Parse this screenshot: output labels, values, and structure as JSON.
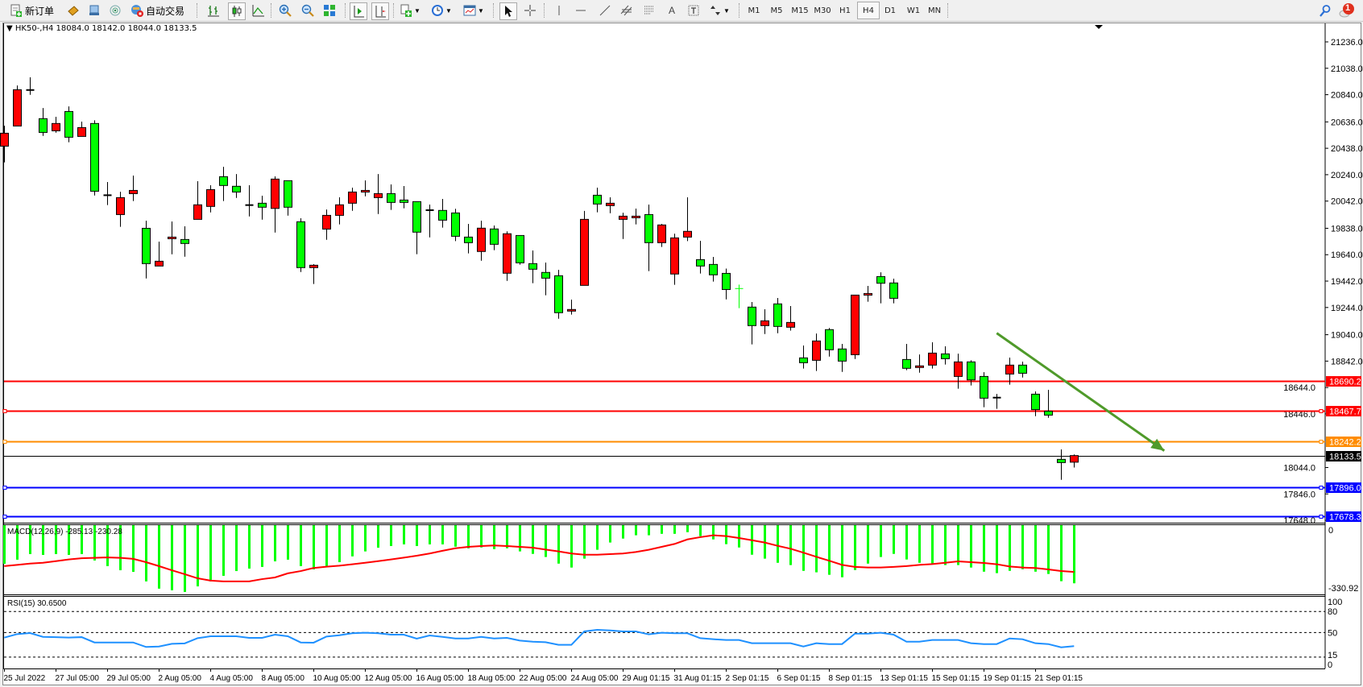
{
  "toolbar": {
    "new_order_label": "新订单",
    "auto_trading_label": "自动交易",
    "icons": [
      "new-order-icon",
      "market-watch-icon",
      "navigator-icon",
      "signals-icon",
      "auto-trading-icon",
      "bar-chart-icon",
      "candlestick-icon",
      "line-chart-icon",
      "zoom-in-icon",
      "zoom-out-icon",
      "tile-windows-icon",
      "auto-scroll-icon",
      "chart-shift-icon",
      "indicators-icon",
      "periods-icon",
      "templates-icon",
      "cursor-icon",
      "crosshair-icon",
      "vertical-line-icon",
      "horizontal-line-icon",
      "trendline-icon",
      "equidistant-channel-icon",
      "fibonacci-icon",
      "text-icon",
      "text-label-icon",
      "arrows-icon",
      "search-icon",
      "notification-icon"
    ],
    "timeframes": [
      "M1",
      "M5",
      "M15",
      "M30",
      "H1",
      "H4",
      "D1",
      "W1",
      "MN"
    ],
    "active_timeframe": "H4",
    "text_tool_label": "A",
    "notification_count": "1"
  },
  "chart": {
    "symbol_info": "HK50-,H4  18084.0 18142.0 18044.0 18133.5",
    "colors": {
      "bull_body": "#ff0000",
      "bear_body": "#00ff00",
      "outline": "#000000",
      "macd_hist": "#00ff00",
      "macd_signal": "#ff0000",
      "rsi": "#1e90ff",
      "arrow": "#4f9a2a"
    },
    "price_ticks": [
      21236.0,
      21038.0,
      20840.0,
      20636.0,
      20438.0,
      20240.0,
      20042.0,
      19838.0,
      19640.0,
      19442.0,
      19244.0,
      19040.0,
      18842.0,
      18644.0,
      18446.0,
      18044.0,
      17846.0,
      17648.0
    ],
    "hlines": [
      {
        "price": "18690.2",
        "color": "#ff0000",
        "markers": false
      },
      {
        "price": "18467.7",
        "color": "#ff0000",
        "markers": true
      },
      {
        "price": "18242.2",
        "color": "#ff8c00",
        "markers": true
      },
      {
        "price": "18133.5",
        "color": "#000000",
        "markers": false
      },
      {
        "price": "17896.0",
        "color": "#0000ff",
        "markers": true
      },
      {
        "price": "17678.3",
        "color": "#0000ff",
        "markers": true
      }
    ],
    "candles_ohlc": [
      [
        20454,
        20607,
        20332,
        20551
      ],
      [
        20605,
        20909,
        20605,
        20877
      ],
      [
        20875,
        20970,
        20839,
        20875
      ],
      [
        20660,
        20740,
        20531,
        20557
      ],
      [
        20569,
        20674,
        20555,
        20624
      ],
      [
        20714,
        20752,
        20483,
        20521
      ],
      [
        20527,
        20638,
        20527,
        20593
      ],
      [
        20624,
        20648,
        20084,
        20116
      ],
      [
        20086,
        20185,
        20012,
        20086
      ],
      [
        19941,
        20112,
        19849,
        20068
      ],
      [
        20098,
        20233,
        20042,
        20122
      ],
      [
        19838,
        19895,
        19462,
        19573
      ],
      [
        19555,
        19738,
        19555,
        19591
      ],
      [
        19760,
        19889,
        19643,
        19772
      ],
      [
        19754,
        19853,
        19625,
        19724
      ],
      [
        19905,
        20191,
        19905,
        20014
      ],
      [
        20002,
        20161,
        19957,
        20128
      ],
      [
        20225,
        20299,
        20042,
        20159
      ],
      [
        20153,
        20245,
        20066,
        20110
      ],
      [
        20012,
        20161,
        19927,
        20012
      ],
      [
        20026,
        20082,
        19903,
        19996
      ],
      [
        19987,
        20227,
        19806,
        20207
      ],
      [
        20195,
        20195,
        19933,
        19996
      ],
      [
        19887,
        19913,
        19510,
        19543
      ],
      [
        19543,
        19569,
        19420,
        19561
      ],
      [
        19832,
        19979,
        19752,
        19935
      ],
      [
        19935,
        20070,
        19867,
        20014
      ],
      [
        20026,
        20143,
        19969,
        20110
      ],
      [
        20110,
        20197,
        20078,
        20122
      ],
      [
        20068,
        20245,
        19945,
        20098
      ],
      [
        20098,
        20167,
        19976,
        20032
      ],
      [
        20050,
        20155,
        19988,
        20032
      ],
      [
        20038,
        20038,
        19644,
        19809
      ],
      [
        19974,
        20016,
        19770,
        19974
      ],
      [
        19972,
        20058,
        19843,
        19899
      ],
      [
        19953,
        19984,
        19742,
        19778
      ],
      [
        19772,
        19871,
        19650,
        19730
      ],
      [
        19664,
        19895,
        19595,
        19839
      ],
      [
        19833,
        19859,
        19674,
        19718
      ],
      [
        19501,
        19815,
        19444,
        19797
      ],
      [
        19784,
        19784,
        19565,
        19579
      ],
      [
        19573,
        19672,
        19426,
        19531
      ],
      [
        19507,
        19581,
        19336,
        19464
      ],
      [
        19482,
        19527,
        19160,
        19205
      ],
      [
        19217,
        19303,
        19191,
        19229
      ],
      [
        19410,
        19968,
        19410,
        19905
      ],
      [
        20086,
        20143,
        19958,
        20020
      ],
      [
        20008,
        20070,
        19951,
        20026
      ],
      [
        19905,
        19955,
        19758,
        19929
      ],
      [
        19917,
        19986,
        19867,
        19929
      ],
      [
        19941,
        20016,
        19517,
        19730
      ],
      [
        19730,
        19871,
        19698,
        19863
      ],
      [
        19495,
        19798,
        19414,
        19766
      ],
      [
        19772,
        20070,
        19742,
        19815
      ],
      [
        19603,
        19744,
        19499,
        19555
      ],
      [
        19567,
        19623,
        19438,
        19489
      ],
      [
        19500,
        19536,
        19305,
        19379
      ],
      [
        19386,
        19416,
        19239,
        19386
      ],
      [
        19247,
        19285,
        18967,
        19108
      ],
      [
        19108,
        19231,
        19045,
        19144
      ],
      [
        19271,
        19315,
        19051,
        19102
      ],
      [
        19096,
        19255,
        19071,
        19132
      ],
      [
        18866,
        18959,
        18786,
        18830
      ],
      [
        18848,
        19049,
        18768,
        18993
      ],
      [
        19078,
        19090,
        18876,
        18927
      ],
      [
        18933,
        18971,
        18761,
        18842
      ],
      [
        18890,
        19337,
        18858,
        19337
      ],
      [
        19337,
        19406,
        19287,
        19349
      ],
      [
        19476,
        19508,
        19275,
        19426
      ],
      [
        19428,
        19460,
        19275,
        19313
      ],
      [
        18854,
        18971,
        18774,
        18788
      ],
      [
        18794,
        18892,
        18755,
        18806
      ],
      [
        18812,
        18983,
        18786,
        18902
      ],
      [
        18896,
        18953,
        18816,
        18860
      ],
      [
        18727,
        18898,
        18635,
        18836
      ],
      [
        18836,
        18848,
        18659,
        18701
      ],
      [
        18727,
        18759,
        18496,
        18564
      ],
      [
        18568,
        18596,
        18484,
        18568
      ],
      [
        18745,
        18868,
        18665,
        18812
      ],
      [
        18812,
        18838,
        18719,
        18751
      ],
      [
        18594,
        18615,
        18429,
        18478
      ],
      [
        18466,
        18627,
        18417,
        18437
      ],
      [
        18105,
        18180,
        17952,
        18081
      ],
      [
        18084,
        18142,
        18044,
        18133.5
      ]
    ],
    "green_doji_index": 57,
    "trend_arrow": {
      "from_price": 19052,
      "to_price": 18170,
      "from_candle": 77,
      "to_candle": 90
    },
    "time_labels": [
      "25 Jul 2022",
      "27 Jul 05:00",
      "29 Jul 05:00",
      "2 Aug 05:00",
      "4 Aug 05:00",
      "8 Aug 05:00",
      "10 Aug 05:00",
      "12 Aug 05:00",
      "16 Aug 05:00",
      "18 Aug 05:00",
      "22 Aug 05:00",
      "24 Aug 05:00",
      "29 Aug 01:15",
      "31 Aug 01:15",
      "2 Sep 01:15",
      "6 Sep 01:15",
      "8 Sep 01:15",
      "13 Sep 01:15",
      "15 Sep 01:15",
      "19 Sep 01:15",
      "21 Sep 01:15"
    ],
    "time_label_every": 4
  },
  "macd": {
    "label": "MACD(12,26,9) -285.13 -230.28",
    "scale_top": "0",
    "scale_bottom": "-330.92",
    "range": [
      -330.92,
      0
    ],
    "histogram": [
      -191,
      -171,
      -144,
      -148,
      -144,
      -148,
      -144,
      -175,
      -202,
      -222,
      -230,
      -276,
      -311,
      -319,
      -327,
      -300,
      -276,
      -249,
      -226,
      -214,
      -206,
      -179,
      -171,
      -202,
      -218,
      -202,
      -183,
      -155,
      -131,
      -113,
      -105,
      -97,
      -105,
      -97,
      -97,
      -108,
      -116,
      -112,
      -120,
      -116,
      -131,
      -143,
      -158,
      -190,
      -209,
      -166,
      -123,
      -88,
      -69,
      -53,
      -53,
      -46,
      -46,
      -38,
      -57,
      -73,
      -96,
      -112,
      -147,
      -166,
      -186,
      -197,
      -225,
      -232,
      -244,
      -256,
      -221,
      -190,
      -158,
      -143,
      -170,
      -186,
      -190,
      -197,
      -197,
      -209,
      -229,
      -236,
      -225,
      -217,
      -229,
      -240,
      -275,
      -285.13
    ],
    "signal": [
      -202,
      -196,
      -190,
      -186,
      -178,
      -170,
      -164,
      -162,
      -160,
      -162,
      -167,
      -183,
      -202,
      -222,
      -241,
      -261,
      -272,
      -276,
      -276,
      -276,
      -265,
      -257,
      -237,
      -226,
      -211,
      -205,
      -200,
      -193,
      -186,
      -178,
      -170,
      -161,
      -152,
      -141,
      -128,
      -116,
      -109,
      -105,
      -102,
      -105,
      -109,
      -113,
      -122,
      -131,
      -141,
      -147,
      -147,
      -144,
      -141,
      -134,
      -123,
      -109,
      -95,
      -73,
      -62,
      -53,
      -57,
      -66,
      -77,
      -88,
      -104,
      -118,
      -137,
      -157,
      -176,
      -196,
      -206,
      -209,
      -209,
      -206,
      -202,
      -196,
      -192,
      -186,
      -179,
      -183,
      -187,
      -193,
      -204,
      -209,
      -211,
      -218,
      -226,
      -230.28
    ]
  },
  "rsi": {
    "label": "RSI(15) 30.6500",
    "levels": [
      80,
      50,
      15
    ],
    "scale_labels": [
      "100",
      "80",
      "50",
      "15",
      "0"
    ],
    "range": [
      0,
      100
    ],
    "values": [
      42.8,
      47.8,
      49.3,
      43.9,
      43.5,
      42.8,
      43.5,
      35.9,
      35.9,
      35.9,
      35.9,
      29.5,
      30.1,
      34.0,
      34.6,
      42.0,
      44.7,
      44.7,
      44.7,
      42.4,
      42.4,
      47.0,
      44.7,
      35.9,
      35.6,
      44.3,
      46.2,
      49.0,
      49.7,
      49.0,
      47.0,
      47.0,
      41.3,
      45.9,
      43.9,
      41.6,
      41.6,
      43.9,
      41.6,
      42.4,
      38.6,
      37.0,
      36.3,
      32.5,
      32.5,
      51.6,
      53.9,
      53.1,
      51.6,
      51.6,
      47.4,
      49.7,
      49.0,
      49.0,
      42.0,
      40.5,
      39.4,
      39.4,
      34.8,
      34.8,
      34.8,
      34.8,
      30.2,
      34.8,
      33.6,
      33.6,
      48.5,
      48.5,
      49.7,
      47.0,
      37.0,
      37.0,
      39.4,
      39.4,
      39.4,
      34.8,
      33.6,
      33.6,
      41.6,
      40.5,
      34.8,
      33.6,
      29.0,
      30.65
    ]
  }
}
